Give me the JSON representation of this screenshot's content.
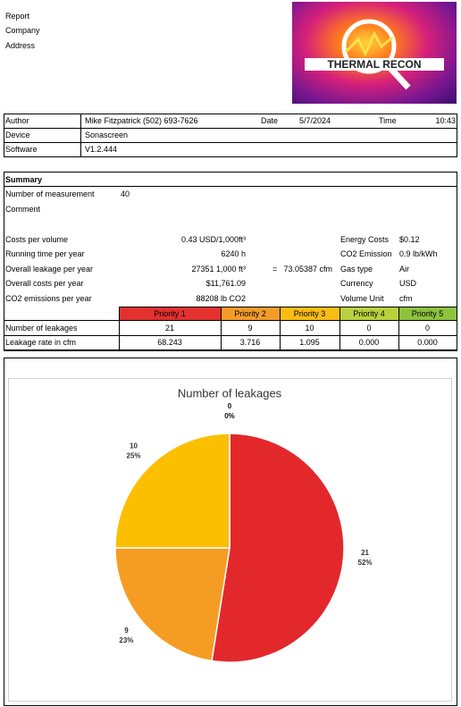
{
  "header": {
    "fields": [
      "Report",
      "Company",
      "Address"
    ],
    "logo": "THERMAL RECON"
  },
  "info": {
    "rows": [
      [
        "Author",
        "Mike Fitzpatrick (502) 693-7626",
        "Date",
        "5/7/2024",
        "Time",
        "10:43"
      ],
      [
        "Device",
        "Sonascreen"
      ],
      [
        "Software",
        "V1.2.444"
      ]
    ]
  },
  "summary": {
    "title": "Summary",
    "measurement": [
      "Number of measurement",
      "40"
    ],
    "comment": "Comment",
    "left": [
      [
        "Costs per volume",
        "0.43 USD/1,000ft³"
      ],
      [
        "Running time per year",
        "6240 h"
      ],
      [
        "Overall leakage per year",
        "27351 1,000 ft³"
      ],
      [
        "Overall costs per year",
        "$11,761.09"
      ],
      [
        "CO2 emissions per year",
        "88208 lb CO2"
      ]
    ],
    "leakage_equals": "=",
    "leakage_cfm": "73.05387 cfm",
    "right": [
      [
        "Energy Costs",
        "$0.12"
      ],
      [
        "CO2 Emission",
        "0.9 lb/kWh"
      ],
      [
        "Gas type",
        "Air"
      ],
      [
        "Currency",
        "USD"
      ],
      [
        "Volume Unit",
        "cfm"
      ]
    ]
  },
  "priorities": {
    "header": [
      "Priority 1",
      "Priority 2",
      "Priority 3",
      "Priority 4",
      "Priority 5"
    ],
    "colors": [
      "#e3312f",
      "#f59b2a",
      "#fbbd14",
      "#b9d13c",
      "#8dc33f"
    ],
    "rows": [
      [
        "Number of leakages",
        "21",
        "9",
        "10",
        "0",
        "0"
      ],
      [
        "Leakage rate in cfm",
        "68.243",
        "3.716",
        "1.095",
        "0.000",
        "0.000"
      ]
    ]
  },
  "chart_data": {
    "type": "pie",
    "title": "Number of leakages",
    "values": [
      21,
      9,
      10,
      0,
      0
    ],
    "percent_labels": [
      "52%",
      "23%",
      "25%",
      "0%",
      "0%"
    ],
    "colors": [
      "#e3282b",
      "#f59d23",
      "#fbbf00",
      "#b9d13c",
      "#8dc33f"
    ]
  }
}
